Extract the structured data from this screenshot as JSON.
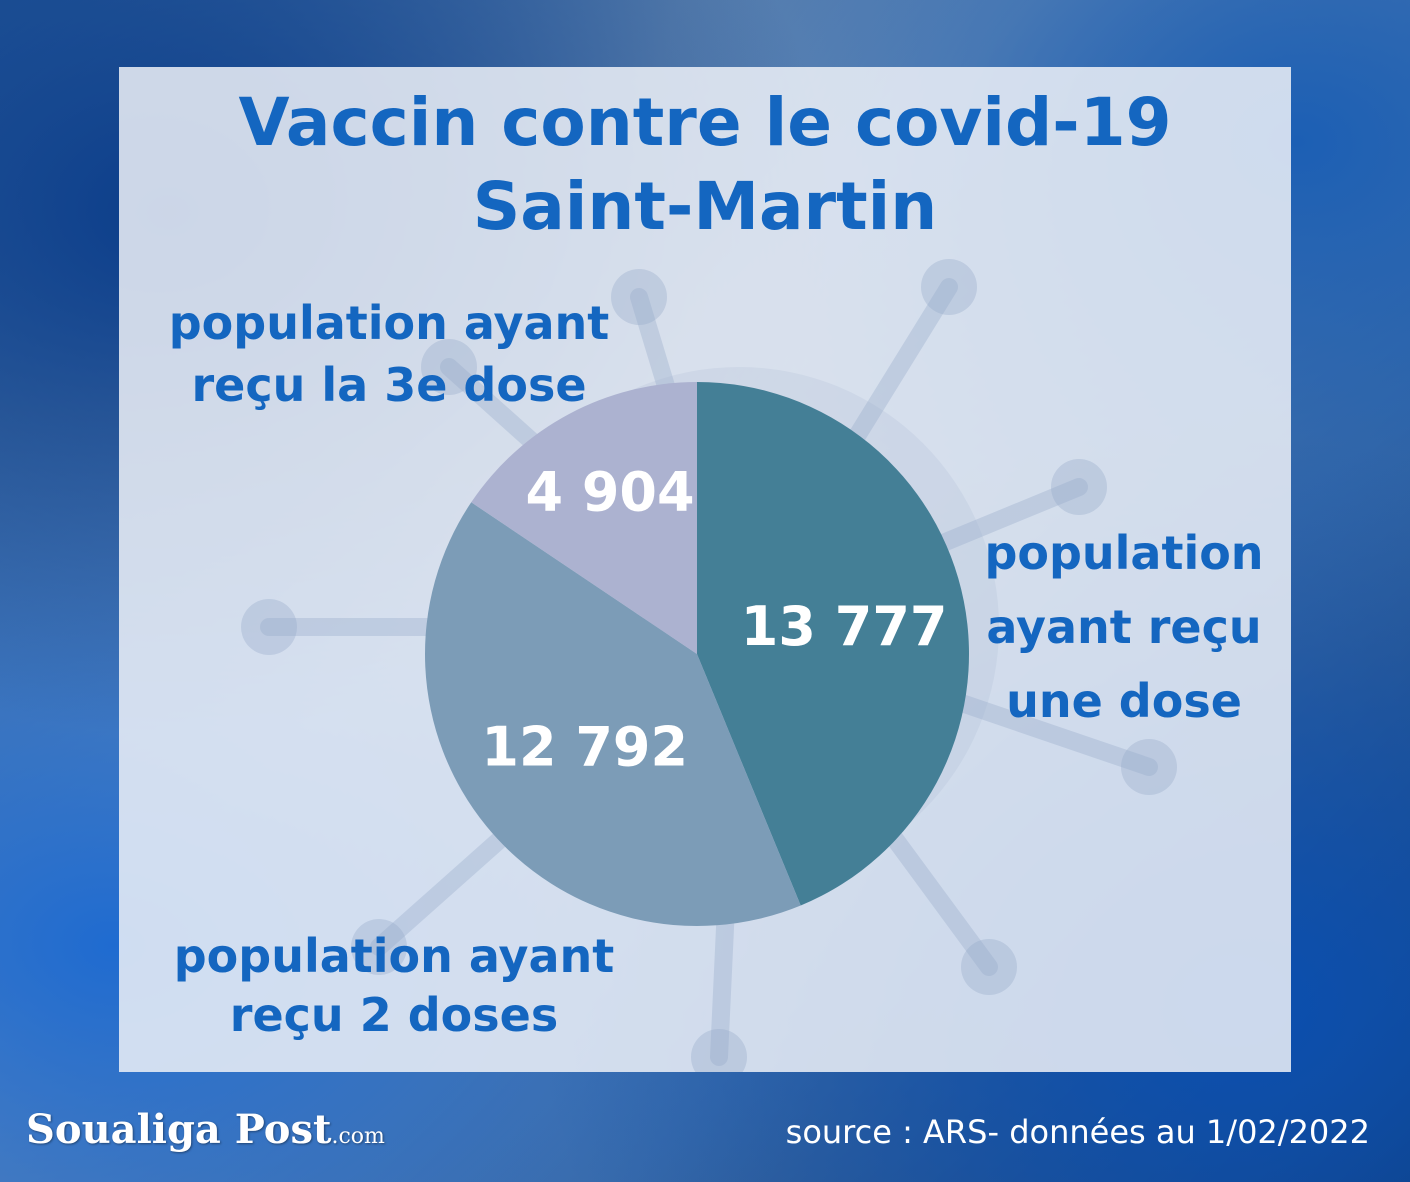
{
  "title_line1": "Vaccin contre le covid-19",
  "title_line2": "Saint-Martin",
  "colors": {
    "one_dose": "#447f96",
    "two_doses": "#7c9cb7",
    "third_dose": "#acb2d0",
    "title": "#1466c0"
  },
  "chart_data": {
    "type": "pie",
    "slices": [
      {
        "label_lines": [
          "population",
          "ayant reçu",
          "une dose"
        ],
        "value": 13777,
        "display": "13 777"
      },
      {
        "label_lines": [
          "population ayant",
          "reçu 2 doses"
        ],
        "value": 12792,
        "display": "12 792"
      },
      {
        "label_lines": [
          "population ayant",
          "reçu la 3e dose"
        ],
        "value": 4904,
        "display": "4 904"
      }
    ]
  },
  "footer": {
    "logo": "Soualiga Post",
    "logo_suffix": ".com",
    "source": "source : ARS- données au 1/02/2022"
  }
}
